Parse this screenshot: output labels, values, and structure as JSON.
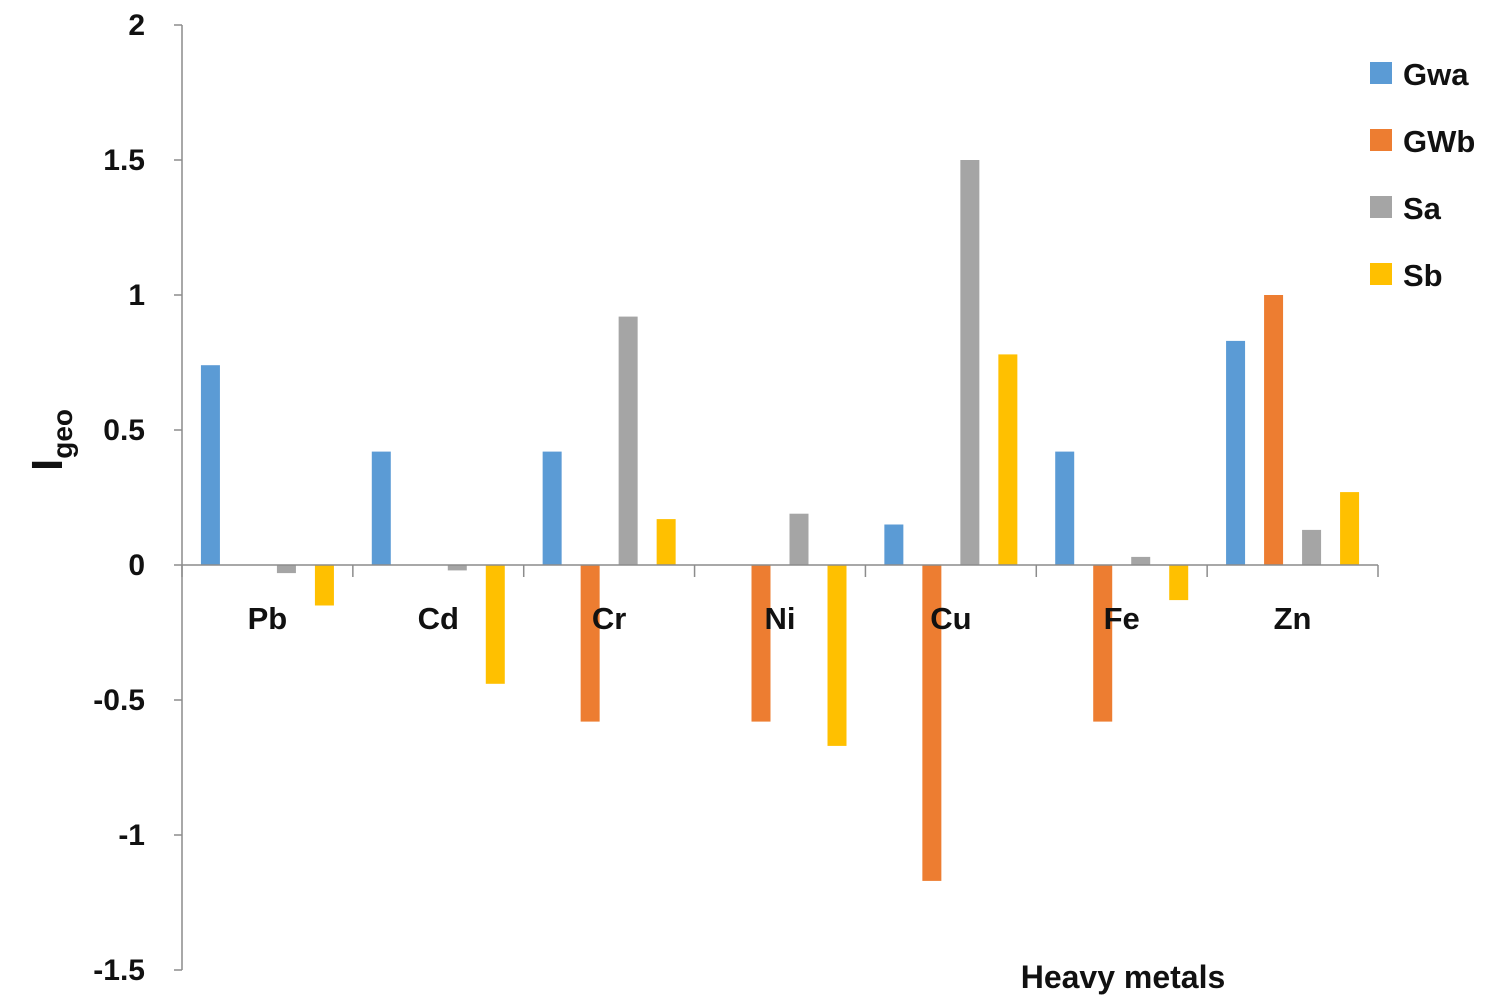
{
  "chart_data": {
    "type": "bar",
    "categories": [
      "Pb",
      "Cd",
      "Cr",
      "Ni",
      "Cu",
      "Fe",
      "Zn"
    ],
    "series": [
      {
        "name": "Gwa",
        "color": "#5B9BD5",
        "values": [
          0.74,
          0.42,
          0.42,
          0,
          0.15,
          0.42,
          0.83
        ]
      },
      {
        "name": "GWb",
        "color": "#ED7D31",
        "values": [
          0,
          0,
          -0.58,
          -0.58,
          -1.17,
          -0.58,
          1.0
        ]
      },
      {
        "name": "Sa",
        "color": "#A5A5A5",
        "values": [
          -0.03,
          -0.02,
          0.92,
          0.19,
          1.5,
          0.03,
          0.13
        ]
      },
      {
        "name": "Sb",
        "color": "#FFC000",
        "values": [
          -0.15,
          -0.44,
          0.17,
          -0.67,
          0.78,
          -0.13,
          0.27
        ]
      }
    ],
    "ylabel": "I",
    "ylabel_subscript": "geo",
    "xlabel": "Heavy metals",
    "ylim": [
      -1.5,
      2
    ],
    "yticks": [
      -1.5,
      -1,
      -0.5,
      0,
      0.5,
      1,
      1.5,
      2
    ],
    "ytick_labels": [
      "-1.5",
      "-1",
      "-0.5",
      "0",
      "0.5",
      "1",
      "1.5",
      "2"
    ],
    "grid": false,
    "legend_position": "right"
  }
}
